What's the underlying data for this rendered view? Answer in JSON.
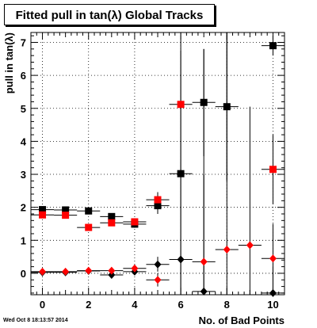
{
  "chart_data": {
    "type": "scatter",
    "title": "Fitted pull in tan(λ)  Global Tracks",
    "xlabel": "No. of Bad Points",
    "ylabel": "pull in tan(λ)",
    "xlim": [
      -0.5,
      10.5
    ],
    "ylim": [
      -0.65,
      7.3
    ],
    "x_ticks": [
      0,
      2,
      4,
      6,
      8,
      10
    ],
    "y_ticks": [
      0,
      1,
      2,
      3,
      4,
      5,
      6,
      7
    ],
    "grid": true,
    "legend": "none",
    "timestamp": "Wed Oct  8 18:13:57 2014",
    "series": [
      {
        "marker": "square",
        "color": "#000000",
        "points": [
          {
            "x": 0,
            "y": 1.93,
            "ylo": 1.9,
            "yhi": 1.96
          },
          {
            "x": 1,
            "y": 1.92,
            "ylo": 1.89,
            "yhi": 1.95
          },
          {
            "x": 2,
            "y": 1.89,
            "ylo": 1.84,
            "yhi": 1.94
          },
          {
            "x": 3,
            "y": 1.72,
            "ylo": 1.65,
            "yhi": 1.79
          },
          {
            "x": 4,
            "y": 1.49,
            "ylo": 1.38,
            "yhi": 1.6
          },
          {
            "x": 5,
            "y": 2.05,
            "ylo": 1.8,
            "yhi": 2.3
          },
          {
            "x": 6,
            "y": 3.02,
            "ylo": -0.65,
            "yhi": 7.3
          },
          {
            "x": 7,
            "y": 5.18,
            "ylo": 3.55,
            "yhi": 6.8
          },
          {
            "x": 8,
            "y": 5.05,
            "ylo": 2.8,
            "yhi": 7.3
          },
          {
            "x": 10,
            "y": 6.9,
            "ylo": 6.6,
            "yhi": 7.2
          }
        ]
      },
      {
        "marker": "square",
        "color": "#ff0000",
        "points": [
          {
            "x": 0,
            "y": 1.77,
            "ylo": 1.74,
            "yhi": 1.8
          },
          {
            "x": 1,
            "y": 1.76,
            "ylo": 1.73,
            "yhi": 1.79
          },
          {
            "x": 2,
            "y": 1.39,
            "ylo": 1.34,
            "yhi": 1.44
          },
          {
            "x": 3,
            "y": 1.53,
            "ylo": 1.46,
            "yhi": 1.6
          },
          {
            "x": 4,
            "y": 1.56,
            "ylo": 1.46,
            "yhi": 1.66
          },
          {
            "x": 5,
            "y": 2.23,
            "ylo": 2.0,
            "yhi": 2.46
          },
          {
            "x": 6,
            "y": 5.12,
            "ylo": 3.5,
            "yhi": 6.75
          },
          {
            "x": 10,
            "y": 3.15,
            "ylo": 2.1,
            "yhi": 4.2
          }
        ]
      },
      {
        "marker": "diamond",
        "color": "#000000",
        "points": [
          {
            "x": 0,
            "y": 0.03,
            "ylo": 0.0,
            "yhi": 0.06
          },
          {
            "x": 1,
            "y": 0.03,
            "ylo": 0.0,
            "yhi": 0.06
          },
          {
            "x": 2,
            "y": 0.07,
            "ylo": 0.03,
            "yhi": 0.11
          },
          {
            "x": 3,
            "y": -0.05,
            "ylo": -0.11,
            "yhi": 0.01
          },
          {
            "x": 4,
            "y": 0.05,
            "ylo": -0.05,
            "yhi": 0.15
          },
          {
            "x": 5,
            "y": 0.27,
            "ylo": 0.05,
            "yhi": 0.5
          },
          {
            "x": 6,
            "y": 0.42,
            "ylo": -0.65,
            "yhi": 3.5
          },
          {
            "x": 7,
            "y": -0.55,
            "ylo": -0.65,
            "yhi": 3.0
          },
          {
            "x": 10,
            "y": -0.6,
            "ylo": -0.65,
            "yhi": 0.2
          }
        ]
      },
      {
        "marker": "diamond",
        "color": "#ff0000",
        "points": [
          {
            "x": 0,
            "y": 0.05,
            "ylo": 0.02,
            "yhi": 0.08
          },
          {
            "x": 1,
            "y": 0.05,
            "ylo": 0.02,
            "yhi": 0.08
          },
          {
            "x": 2,
            "y": 0.08,
            "ylo": 0.04,
            "yhi": 0.12
          },
          {
            "x": 3,
            "y": 0.08,
            "ylo": 0.02,
            "yhi": 0.14
          },
          {
            "x": 4,
            "y": 0.15,
            "ylo": 0.05,
            "yhi": 0.25
          },
          {
            "x": 5,
            "y": -0.2,
            "ylo": -0.4,
            "yhi": 0.0
          },
          {
            "x": 7,
            "y": 0.35,
            "ylo": -0.65,
            "yhi": 6.8
          },
          {
            "x": 8,
            "y": 0.72,
            "ylo": -0.65,
            "yhi": 7.3
          },
          {
            "x": 9,
            "y": 0.85,
            "ylo": -0.65,
            "yhi": 5.05
          },
          {
            "x": 10,
            "y": 0.45,
            "ylo": -0.65,
            "yhi": 1.5
          }
        ]
      }
    ]
  }
}
